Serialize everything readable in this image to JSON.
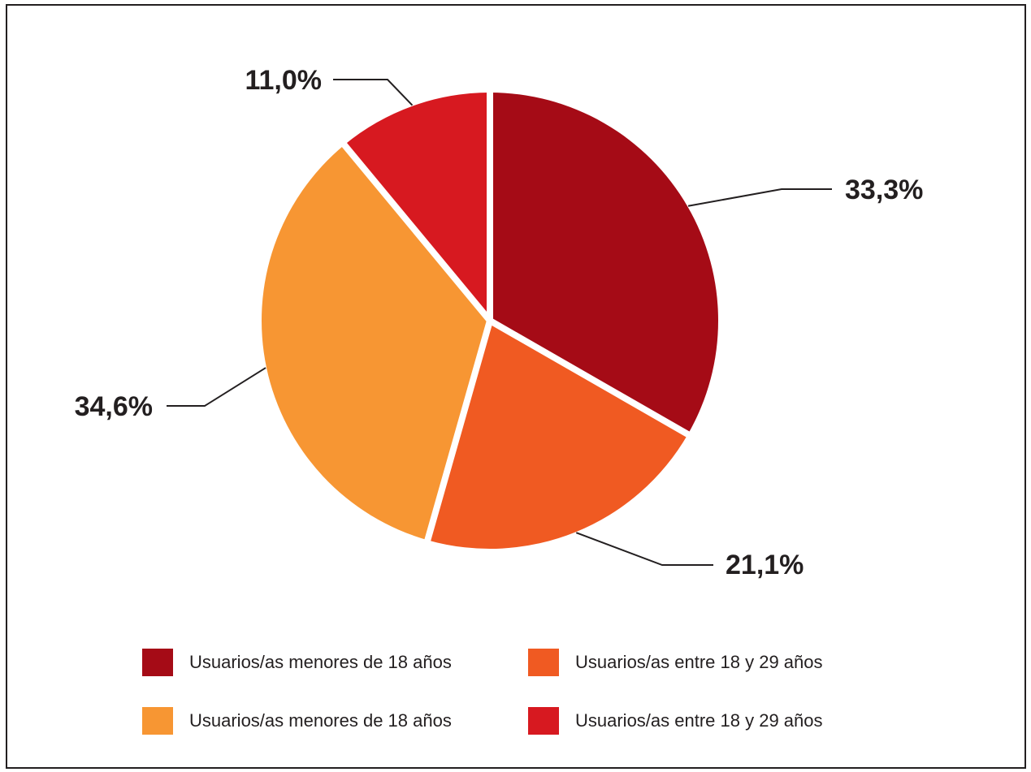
{
  "chart_data": {
    "type": "pie",
    "title": "",
    "slices": [
      {
        "label": "Usuarios/as menores de 18 años",
        "value": 33.3,
        "value_label": "33,3%",
        "color": "#a50b16"
      },
      {
        "label": "Usuarios/as entre 18 y 29 años",
        "value": 21.1,
        "value_label": "21,1%",
        "color": "#f05a22"
      },
      {
        "label": "Usuarios/as menores de 18 años",
        "value": 34.6,
        "value_label": "34,6%",
        "color": "#f79633"
      },
      {
        "label": "Usuarios/as entre 18 y 29 años",
        "value": 11.0,
        "value_label": "11,0%",
        "color": "#d71920"
      }
    ],
    "start_angle": "12 o'clock",
    "direction": "clockwise",
    "legend_position": "bottom"
  },
  "legend": {
    "items": [
      {
        "label": "Usuarios/as menores de 18 años",
        "color": "#a50b16"
      },
      {
        "label": "Usuarios/as entre 18 y 29 años",
        "color": "#f05a22"
      },
      {
        "label": "Usuarios/as menores de 18 años",
        "color": "#f79633"
      },
      {
        "label": "Usuarios/as entre 18 y 29 años",
        "color": "#d71920"
      }
    ]
  }
}
